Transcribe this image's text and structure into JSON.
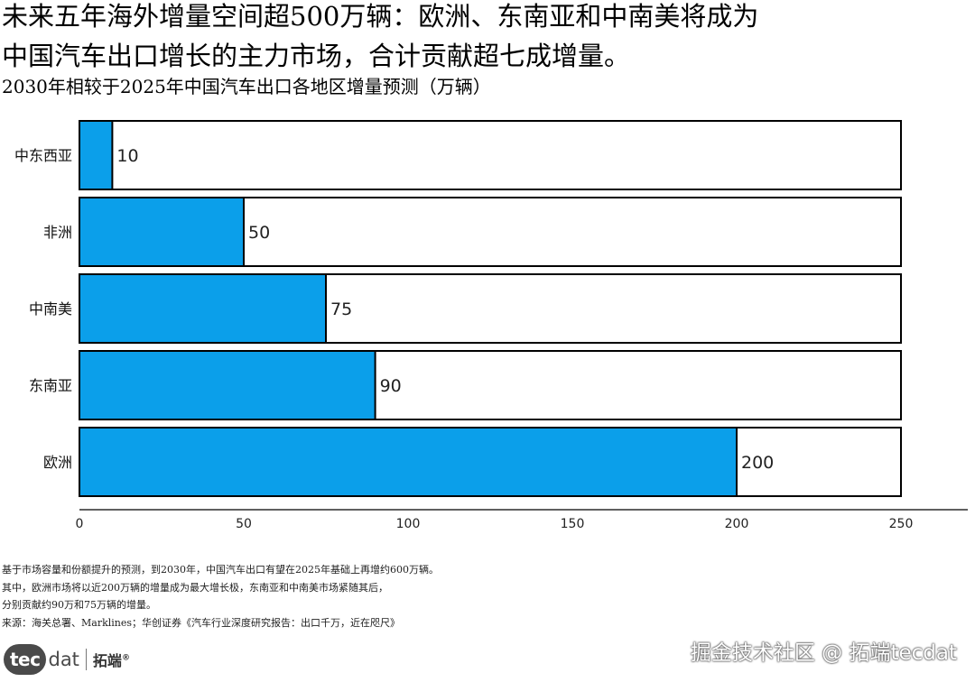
{
  "headline": {
    "line1": "未来五年海外增量空间超500万辆：欧洲、东南亚和中南美将成为",
    "line2": "中国汽车出口增长的主力市场，合计贡献超七成增量。"
  },
  "notes": {
    "line1": "基于市场容量和份额提升的预测，到2030年，中国汽车出口有望在2025年基础上再增约600万辆。",
    "line2": "其中，欧洲市场将以近200万辆的增量成为最大增长极，东南亚和中南美市场紧随其后，",
    "line3": "分别贡献约90万和75万辆的增量。",
    "line4": "来源：海关总署、Marklines；华创证券《汽车行业深度研究报告：出口千万，近在咫尺》"
  },
  "logo": {
    "badge": "tec",
    "suffix": "dat",
    "cn": "拓端",
    "mark": "®"
  },
  "watermark": "掘金技术社区 @ 拓端tecdat",
  "colors": {
    "bar": "#0b9fea",
    "outline": "#000000",
    "background": "#ffffff"
  },
  "chart_data": {
    "type": "bar",
    "orientation": "horizontal",
    "title": "2030年相较于2025年中国汽车出口各地区增量预测（万辆）",
    "categories": [
      "中东西亚",
      "非洲",
      "中南美",
      "东南亚",
      "欧洲"
    ],
    "values": [
      10,
      50,
      75,
      90,
      200
    ],
    "track_max": 250,
    "xlim": [
      0,
      250
    ],
    "xticks": [
      0,
      50,
      100,
      150,
      200,
      250
    ],
    "xlabel": "",
    "ylabel": "",
    "grid": false,
    "legend": "none",
    "data_labels": true
  }
}
